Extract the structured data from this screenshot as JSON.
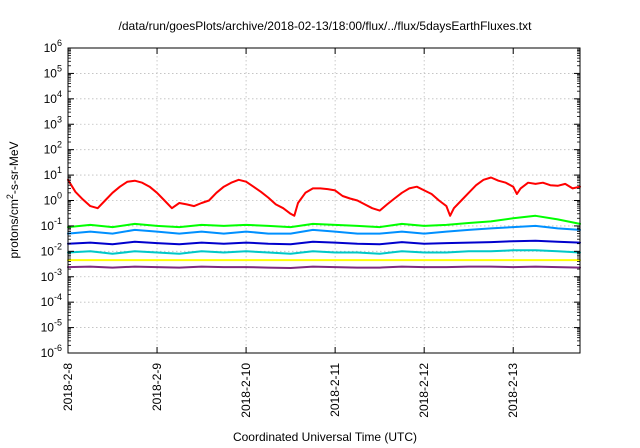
{
  "chart_data": {
    "type": "line",
    "title": "/data/run/goesPlots/archive/2018-02-13/18:00/flux/../flux/5daysEarthFluxes.txt",
    "xlabel": "Coordinated Universal Time (UTC)",
    "ylabel_parts": {
      "pre": "protons/cm",
      "sup": "2",
      "post": "-s-sr-MeV"
    },
    "x_scale": "time",
    "x_range": [
      "2018-02-08T00:00",
      "2018-02-13T18:00"
    ],
    "x_ticks": [
      {
        "label": "2018-2-8",
        "value": "2018-02-08T00:00"
      },
      {
        "label": "2018-2-9",
        "value": "2018-02-09T00:00"
      },
      {
        "label": "2018-2-10",
        "value": "2018-02-10T00:00"
      },
      {
        "label": "2018-2-11",
        "value": "2018-02-11T00:00"
      },
      {
        "label": "2018-2-12",
        "value": "2018-02-12T00:00"
      },
      {
        "label": "2018-2-13",
        "value": "2018-02-13T00:00"
      }
    ],
    "y_scale": "log",
    "y_range": [
      1e-06,
      1000000.0
    ],
    "y_ticks": [
      {
        "base": "10",
        "exp": "6",
        "value": 1000000.0
      },
      {
        "base": "10",
        "exp": "5",
        "value": 100000.0
      },
      {
        "base": "10",
        "exp": "4",
        "value": 10000.0
      },
      {
        "base": "10",
        "exp": "3",
        "value": 1000.0
      },
      {
        "base": "10",
        "exp": "2",
        "value": 100.0
      },
      {
        "base": "10",
        "exp": "1",
        "value": 10.0
      },
      {
        "base": "10",
        "exp": "0",
        "value": 1.0
      },
      {
        "base": "10",
        "exp": "-1",
        "value": 0.1
      },
      {
        "base": "10",
        "exp": "-2",
        "value": 0.01
      },
      {
        "base": "10",
        "exp": "-3",
        "value": 0.001
      },
      {
        "base": "10",
        "exp": "-4",
        "value": 0.0001
      },
      {
        "base": "10",
        "exp": "-5",
        "value": 1e-05
      },
      {
        "base": "10",
        "exp": "-6",
        "value": 1e-06
      }
    ],
    "grid": true,
    "series": [
      {
        "color": "#ff0000",
        "points": [
          [
            "2018-02-08T00:00",
            6.5
          ],
          [
            "2018-02-08T02:00",
            2.2
          ],
          [
            "2018-02-08T04:00",
            1.1
          ],
          [
            "2018-02-08T06:00",
            0.6
          ],
          [
            "2018-02-08T08:00",
            0.5
          ],
          [
            "2018-02-08T10:00",
            1.0
          ],
          [
            "2018-02-08T12:00",
            2.0
          ],
          [
            "2018-02-08T14:00",
            3.5
          ],
          [
            "2018-02-08T16:00",
            5.5
          ],
          [
            "2018-02-08T18:00",
            6.0
          ],
          [
            "2018-02-08T20:00",
            5.0
          ],
          [
            "2018-02-08T22:00",
            3.5
          ],
          [
            "2018-02-09T00:00",
            2.0
          ],
          [
            "2018-02-09T02:00",
            1.0
          ],
          [
            "2018-02-09T04:00",
            0.5
          ],
          [
            "2018-02-09T06:00",
            0.8
          ],
          [
            "2018-02-09T08:00",
            0.7
          ],
          [
            "2018-02-09T10:00",
            0.6
          ],
          [
            "2018-02-09T12:00",
            0.8
          ],
          [
            "2018-02-09T14:00",
            1.0
          ],
          [
            "2018-02-09T16:00",
            2.0
          ],
          [
            "2018-02-09T18:00",
            3.5
          ],
          [
            "2018-02-09T20:00",
            5.0
          ],
          [
            "2018-02-09T22:00",
            6.5
          ],
          [
            "2018-02-10T00:00",
            5.5
          ],
          [
            "2018-02-10T02:00",
            3.5
          ],
          [
            "2018-02-10T04:00",
            2.2
          ],
          [
            "2018-02-10T06:00",
            1.3
          ],
          [
            "2018-02-10T08:00",
            0.7
          ],
          [
            "2018-02-10T10:00",
            0.5
          ],
          [
            "2018-02-10T12:00",
            0.3
          ],
          [
            "2018-02-10T13:00",
            0.25
          ],
          [
            "2018-02-10T14:00",
            0.8
          ],
          [
            "2018-02-10T16:00",
            2.0
          ],
          [
            "2018-02-10T18:00",
            3.0
          ],
          [
            "2018-02-10T20:00",
            3.0
          ],
          [
            "2018-02-10T22:00",
            2.8
          ],
          [
            "2018-02-11T00:00",
            2.5
          ],
          [
            "2018-02-11T02:00",
            1.5
          ],
          [
            "2018-02-11T04:00",
            1.2
          ],
          [
            "2018-02-11T06:00",
            1.0
          ],
          [
            "2018-02-11T08:00",
            0.7
          ],
          [
            "2018-02-11T10:00",
            0.5
          ],
          [
            "2018-02-11T12:00",
            0.4
          ],
          [
            "2018-02-11T14:00",
            0.7
          ],
          [
            "2018-02-11T16:00",
            1.2
          ],
          [
            "2018-02-11T18:00",
            2.0
          ],
          [
            "2018-02-11T20:00",
            3.0
          ],
          [
            "2018-02-11T22:00",
            3.5
          ],
          [
            "2018-02-12T00:00",
            2.5
          ],
          [
            "2018-02-12T02:00",
            1.8
          ],
          [
            "2018-02-12T04:00",
            1.0
          ],
          [
            "2018-02-12T06:00",
            0.6
          ],
          [
            "2018-02-12T07:00",
            0.25
          ],
          [
            "2018-02-12T08:00",
            0.5
          ],
          [
            "2018-02-12T10:00",
            1.0
          ],
          [
            "2018-02-12T12:00",
            2.0
          ],
          [
            "2018-02-12T14:00",
            4.0
          ],
          [
            "2018-02-12T16:00",
            6.5
          ],
          [
            "2018-02-12T18:00",
            8.0
          ],
          [
            "2018-02-12T20:00",
            6.0
          ],
          [
            "2018-02-12T22:00",
            5.0
          ],
          [
            "2018-02-13T00:00",
            3.5
          ],
          [
            "2018-02-13T01:00",
            1.8
          ],
          [
            "2018-02-13T02:00",
            3.0
          ],
          [
            "2018-02-13T04:00",
            5.0
          ],
          [
            "2018-02-13T06:00",
            4.5
          ],
          [
            "2018-02-13T08:00",
            5.0
          ],
          [
            "2018-02-13T10:00",
            4.0
          ],
          [
            "2018-02-13T12:00",
            3.8
          ],
          [
            "2018-02-13T14:00",
            4.5
          ],
          [
            "2018-02-13T16:00",
            3.0
          ],
          [
            "2018-02-13T18:00",
            3.5
          ]
        ]
      },
      {
        "color": "#00ff00",
        "points": [
          [
            "2018-02-08T00:00",
            0.09
          ],
          [
            "2018-02-08T06:00",
            0.11
          ],
          [
            "2018-02-08T12:00",
            0.09
          ],
          [
            "2018-02-08T18:00",
            0.12
          ],
          [
            "2018-02-09T00:00",
            0.1
          ],
          [
            "2018-02-09T06:00",
            0.09
          ],
          [
            "2018-02-09T12:00",
            0.11
          ],
          [
            "2018-02-09T18:00",
            0.1
          ],
          [
            "2018-02-10T00:00",
            0.11
          ],
          [
            "2018-02-10T06:00",
            0.1
          ],
          [
            "2018-02-10T12:00",
            0.09
          ],
          [
            "2018-02-10T18:00",
            0.12
          ],
          [
            "2018-02-11T00:00",
            0.11
          ],
          [
            "2018-02-11T06:00",
            0.1
          ],
          [
            "2018-02-11T12:00",
            0.09
          ],
          [
            "2018-02-11T18:00",
            0.12
          ],
          [
            "2018-02-12T00:00",
            0.1
          ],
          [
            "2018-02-12T06:00",
            0.11
          ],
          [
            "2018-02-12T12:00",
            0.13
          ],
          [
            "2018-02-12T18:00",
            0.15
          ],
          [
            "2018-02-13T00:00",
            0.2
          ],
          [
            "2018-02-13T06:00",
            0.25
          ],
          [
            "2018-02-13T12:00",
            0.18
          ],
          [
            "2018-02-13T18:00",
            0.12
          ]
        ]
      },
      {
        "color": "#0090ff",
        "points": [
          [
            "2018-02-08T00:00",
            0.05
          ],
          [
            "2018-02-08T06:00",
            0.06
          ],
          [
            "2018-02-08T12:00",
            0.05
          ],
          [
            "2018-02-08T18:00",
            0.07
          ],
          [
            "2018-02-09T00:00",
            0.06
          ],
          [
            "2018-02-09T06:00",
            0.05
          ],
          [
            "2018-02-09T12:00",
            0.06
          ],
          [
            "2018-02-09T18:00",
            0.05
          ],
          [
            "2018-02-10T00:00",
            0.06
          ],
          [
            "2018-02-10T06:00",
            0.05
          ],
          [
            "2018-02-10T12:00",
            0.05
          ],
          [
            "2018-02-10T18:00",
            0.07
          ],
          [
            "2018-02-11T00:00",
            0.06
          ],
          [
            "2018-02-11T06:00",
            0.05
          ],
          [
            "2018-02-11T12:00",
            0.05
          ],
          [
            "2018-02-11T18:00",
            0.06
          ],
          [
            "2018-02-12T00:00",
            0.05
          ],
          [
            "2018-02-12T06:00",
            0.06
          ],
          [
            "2018-02-12T12:00",
            0.07
          ],
          [
            "2018-02-12T18:00",
            0.08
          ],
          [
            "2018-02-13T00:00",
            0.09
          ],
          [
            "2018-02-13T06:00",
            0.1
          ],
          [
            "2018-02-13T12:00",
            0.08
          ],
          [
            "2018-02-13T18:00",
            0.07
          ]
        ]
      },
      {
        "color": "#0000cc",
        "points": [
          [
            "2018-02-08T00:00",
            0.02
          ],
          [
            "2018-02-08T06:00",
            0.022
          ],
          [
            "2018-02-08T12:00",
            0.019
          ],
          [
            "2018-02-08T18:00",
            0.024
          ],
          [
            "2018-02-09T00:00",
            0.021
          ],
          [
            "2018-02-09T06:00",
            0.019
          ],
          [
            "2018-02-09T12:00",
            0.022
          ],
          [
            "2018-02-09T18:00",
            0.02
          ],
          [
            "2018-02-10T00:00",
            0.022
          ],
          [
            "2018-02-10T06:00",
            0.02
          ],
          [
            "2018-02-10T12:00",
            0.019
          ],
          [
            "2018-02-10T18:00",
            0.024
          ],
          [
            "2018-02-11T00:00",
            0.022
          ],
          [
            "2018-02-11T06:00",
            0.02
          ],
          [
            "2018-02-11T12:00",
            0.019
          ],
          [
            "2018-02-11T18:00",
            0.023
          ],
          [
            "2018-02-12T00:00",
            0.02
          ],
          [
            "2018-02-12T06:00",
            0.021
          ],
          [
            "2018-02-12T12:00",
            0.022
          ],
          [
            "2018-02-12T18:00",
            0.023
          ],
          [
            "2018-02-13T00:00",
            0.025
          ],
          [
            "2018-02-13T06:00",
            0.026
          ],
          [
            "2018-02-13T12:00",
            0.024
          ],
          [
            "2018-02-13T18:00",
            0.022
          ]
        ]
      },
      {
        "color": "#00c8c8",
        "points": [
          [
            "2018-02-08T00:00",
            0.009
          ],
          [
            "2018-02-08T06:00",
            0.01
          ],
          [
            "2018-02-08T12:00",
            0.008
          ],
          [
            "2018-02-08T18:00",
            0.01
          ],
          [
            "2018-02-09T00:00",
            0.009
          ],
          [
            "2018-02-09T06:00",
            0.008
          ],
          [
            "2018-02-09T12:00",
            0.01
          ],
          [
            "2018-02-09T18:00",
            0.009
          ],
          [
            "2018-02-10T00:00",
            0.01
          ],
          [
            "2018-02-10T06:00",
            0.009
          ],
          [
            "2018-02-10T12:00",
            0.008
          ],
          [
            "2018-02-10T18:00",
            0.01
          ],
          [
            "2018-02-11T00:00",
            0.009
          ],
          [
            "2018-02-11T06:00",
            0.009
          ],
          [
            "2018-02-11T12:00",
            0.008
          ],
          [
            "2018-02-11T18:00",
            0.01
          ],
          [
            "2018-02-12T00:00",
            0.009
          ],
          [
            "2018-02-12T06:00",
            0.009
          ],
          [
            "2018-02-12T12:00",
            0.01
          ],
          [
            "2018-02-12T18:00",
            0.01
          ],
          [
            "2018-02-13T00:00",
            0.011
          ],
          [
            "2018-02-13T06:00",
            0.011
          ],
          [
            "2018-02-13T12:00",
            0.01
          ],
          [
            "2018-02-13T18:00",
            0.009
          ]
        ]
      },
      {
        "color": "#ffff00",
        "points": [
          [
            "2018-02-08T00:00",
            0.0045
          ],
          [
            "2018-02-09T00:00",
            0.0045
          ],
          [
            "2018-02-10T00:00",
            0.0045
          ],
          [
            "2018-02-11T00:00",
            0.0045
          ],
          [
            "2018-02-12T00:00",
            0.0045
          ],
          [
            "2018-02-13T00:00",
            0.0045
          ],
          [
            "2018-02-13T18:00",
            0.0045
          ]
        ]
      },
      {
        "color": "#7f2a7f",
        "points": [
          [
            "2018-02-08T00:00",
            0.0024
          ],
          [
            "2018-02-08T06:00",
            0.0025
          ],
          [
            "2018-02-08T12:00",
            0.0023
          ],
          [
            "2018-02-08T18:00",
            0.0025
          ],
          [
            "2018-02-09T00:00",
            0.0024
          ],
          [
            "2018-02-09T06:00",
            0.0023
          ],
          [
            "2018-02-09T12:00",
            0.0025
          ],
          [
            "2018-02-09T18:00",
            0.0024
          ],
          [
            "2018-02-10T00:00",
            0.0024
          ],
          [
            "2018-02-10T06:00",
            0.0023
          ],
          [
            "2018-02-10T12:00",
            0.0022
          ],
          [
            "2018-02-10T18:00",
            0.0025
          ],
          [
            "2018-02-11T00:00",
            0.0024
          ],
          [
            "2018-02-11T06:00",
            0.0023
          ],
          [
            "2018-02-11T12:00",
            0.0023
          ],
          [
            "2018-02-11T18:00",
            0.0025
          ],
          [
            "2018-02-12T00:00",
            0.0024
          ],
          [
            "2018-02-12T06:00",
            0.0024
          ],
          [
            "2018-02-12T12:00",
            0.0025
          ],
          [
            "2018-02-12T18:00",
            0.0025
          ],
          [
            "2018-02-13T00:00",
            0.0024
          ],
          [
            "2018-02-13T06:00",
            0.0025
          ],
          [
            "2018-02-13T12:00",
            0.0024
          ],
          [
            "2018-02-13T18:00",
            0.0023
          ]
        ]
      }
    ]
  }
}
